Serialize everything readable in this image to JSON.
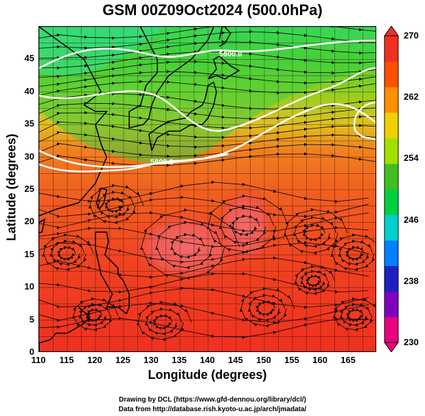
{
  "title": "GSM 00Z09Oct2024 (500.0hPa)",
  "x_axis": {
    "label": "Longitude (degrees)",
    "range": [
      110,
      170
    ],
    "ticks": [
      "110",
      "115",
      "120",
      "125",
      "130",
      "135",
      "140",
      "145",
      "150",
      "155",
      "160",
      "165"
    ]
  },
  "y_axis": {
    "label": "Latitude  (degrees)",
    "range": [
      0,
      50
    ],
    "ticks": [
      "0",
      "5",
      "10",
      "15",
      "20",
      "25",
      "30",
      "35",
      "40",
      "45"
    ]
  },
  "colorbar": {
    "min": 230,
    "max": 270,
    "labels": [
      "270",
      "262",
      "254",
      "246",
      "238",
      "230"
    ],
    "colors": [
      "#e80080",
      "#8000c0",
      "#2020c0",
      "#0080ff",
      "#00d0d0",
      "#00d040",
      "#40c020",
      "#a0e000",
      "#f0d000",
      "#ff9000",
      "#ff5000",
      "#f03020"
    ]
  },
  "contours": [
    {
      "label": "5600.0"
    },
    {
      "label": "5800.0"
    }
  ],
  "credits": {
    "line1": "Drawing by DCL (https://www.gfd-dennou.org/library/dcl/)",
    "line2": "Data from http://database.rish.kyoto-u.ac.jp/arch/jmadata/"
  }
}
